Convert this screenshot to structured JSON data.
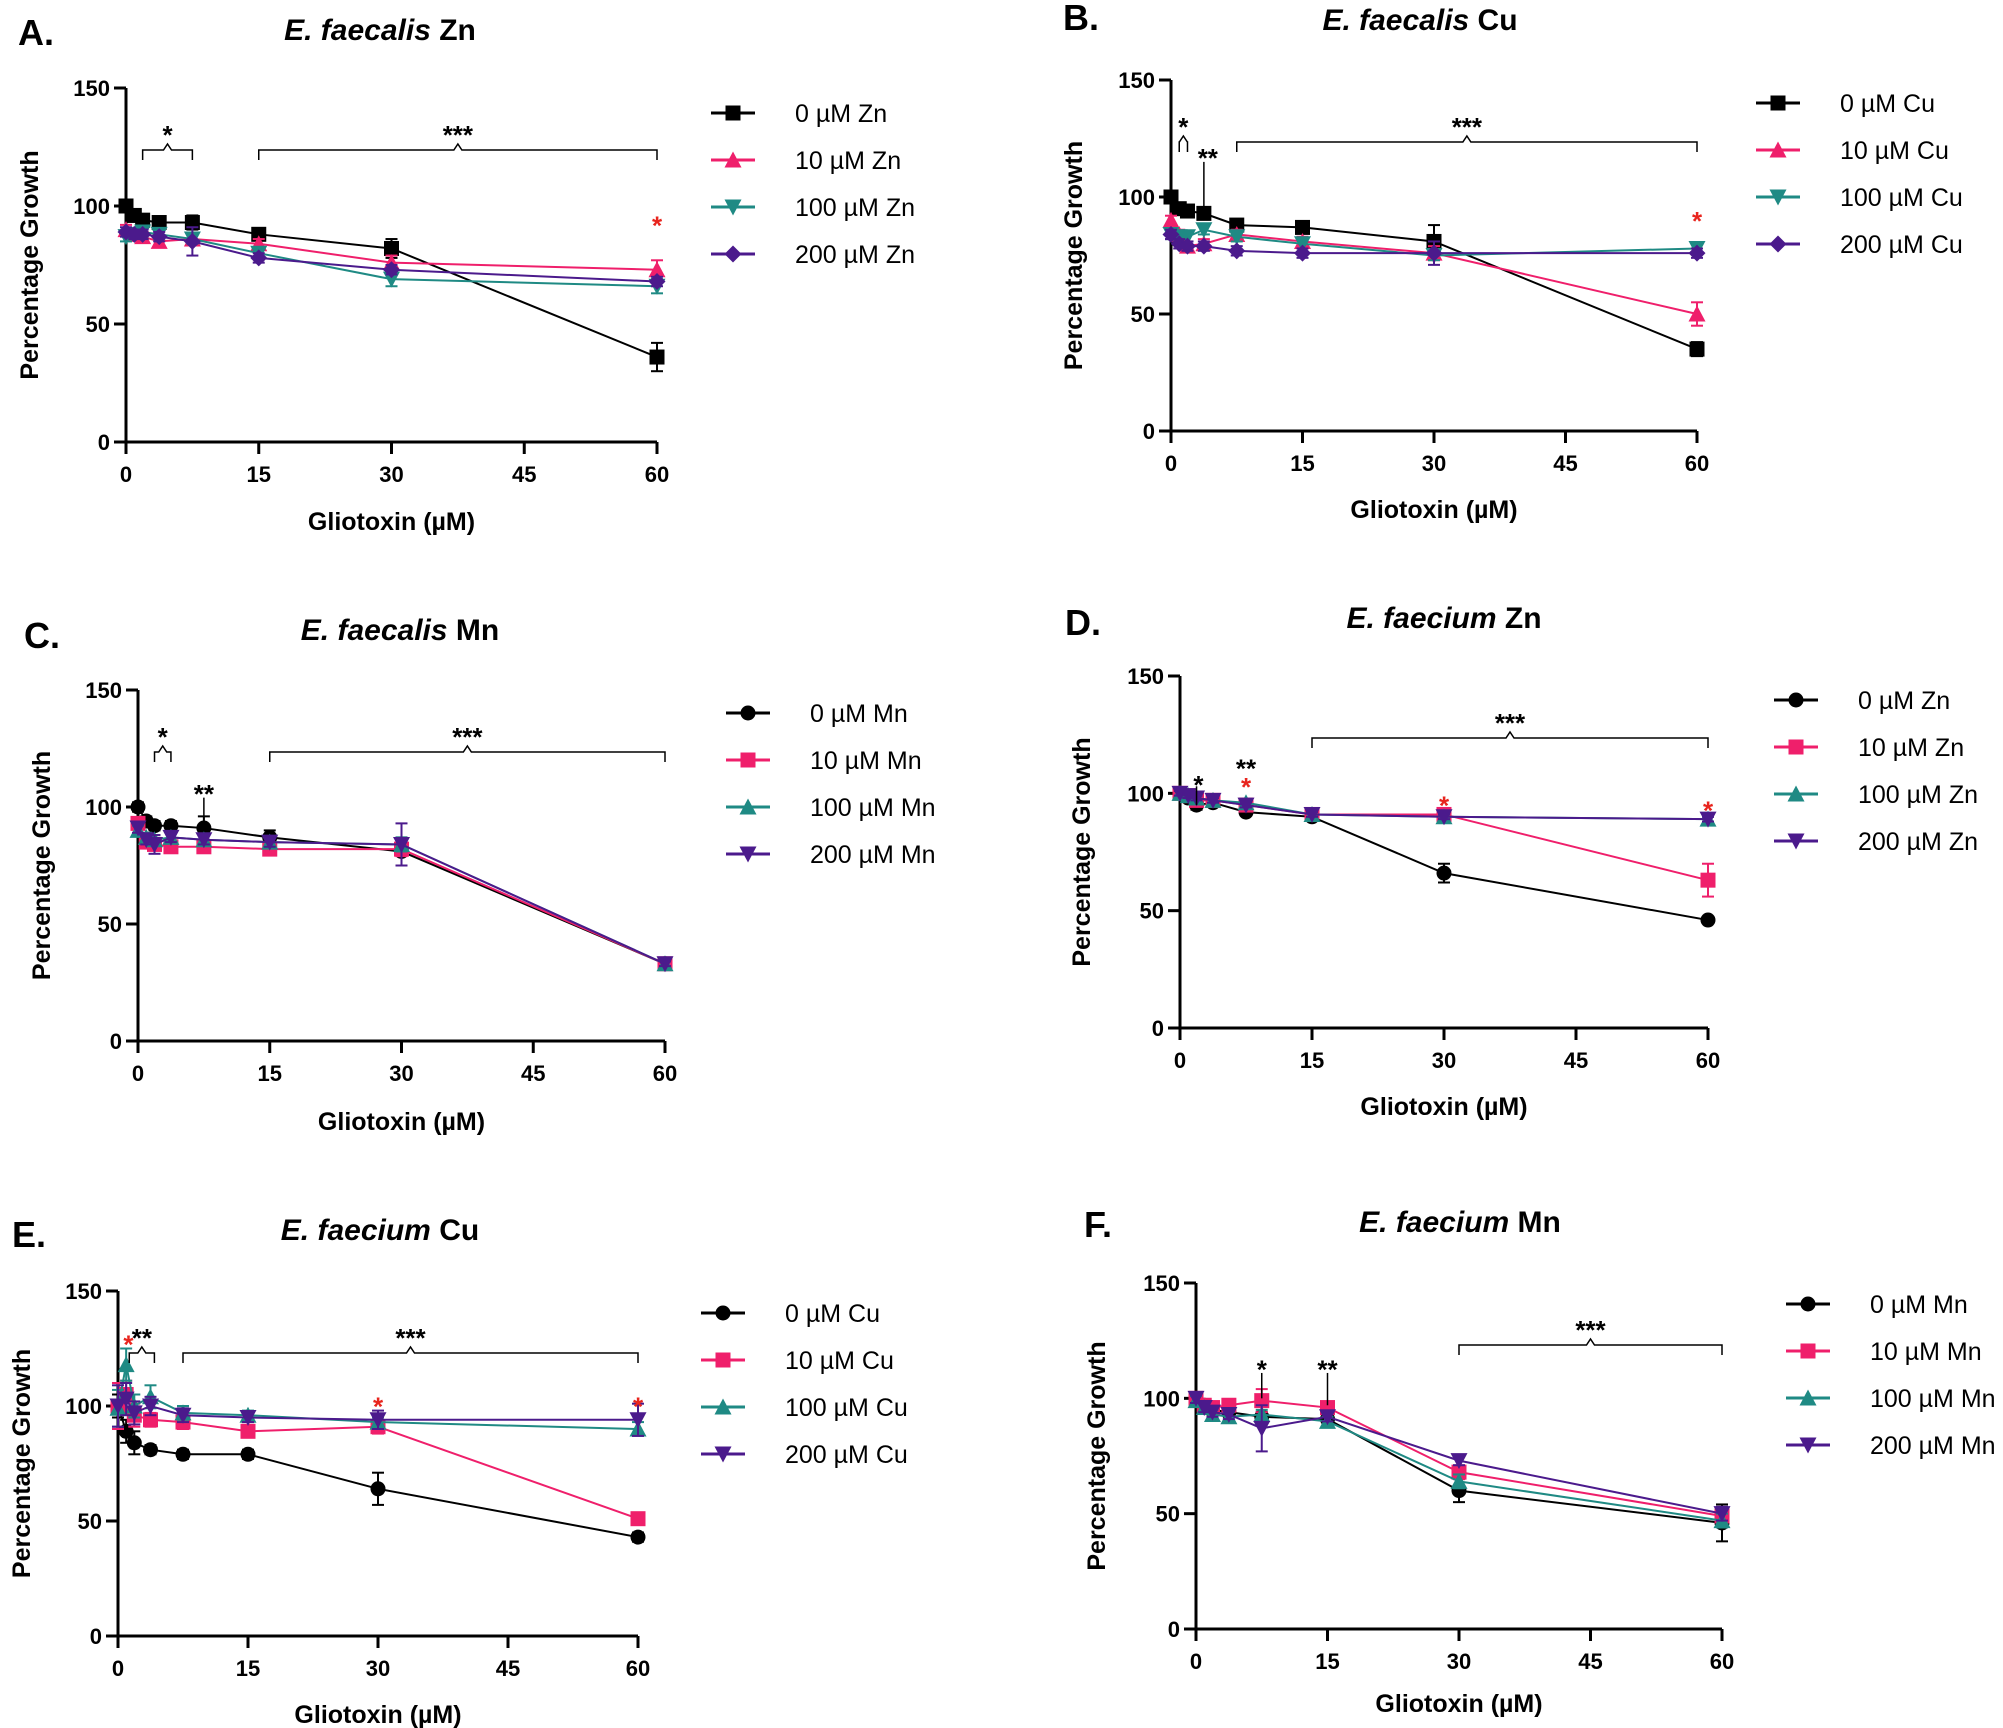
{
  "colors": {
    "black": "#000000",
    "pink": "#ef1f6b",
    "teal": "#1f8a84",
    "purple": "#4b1a8c",
    "red_star": "#e8251e"
  },
  "chart_data": [
    {
      "type": "line",
      "panel_label": "A.",
      "title_italic": "E. faecalis",
      "title_rest": " Zn",
      "xlabel": "Gliotoxin (µM)",
      "ylabel": "Percentage Growth",
      "xlim": [
        0,
        60
      ],
      "ylim": [
        0,
        150
      ],
      "xticks": [
        "0",
        "15",
        "30",
        "45",
        "60"
      ],
      "yticks": [
        "0",
        "50",
        "100",
        "150"
      ],
      "series": [
        {
          "name": "0 µM Zn",
          "color": "black",
          "marker": "square",
          "x": [
            0,
            0.94,
            1.88,
            3.75,
            7.5,
            15,
            30,
            60
          ],
          "y": [
            100,
            96,
            94,
            93,
            93,
            88,
            82,
            36
          ],
          "err": [
            2,
            2,
            2,
            2,
            3,
            2,
            4,
            6
          ]
        },
        {
          "name": "10 µM Zn",
          "color": "pink",
          "marker": "triangle-up",
          "x": [
            0,
            0.94,
            1.88,
            3.75,
            7.5,
            15,
            30,
            60
          ],
          "y": [
            90,
            88,
            87,
            85,
            86,
            84,
            76,
            73
          ],
          "err": [
            2,
            2,
            2,
            2,
            2,
            2,
            3,
            4
          ]
        },
        {
          "name": "100 µM Zn",
          "color": "teal",
          "marker": "triangle-down",
          "x": [
            0,
            0.94,
            1.88,
            3.75,
            7.5,
            15,
            30,
            60
          ],
          "y": [
            87,
            88,
            89,
            88,
            86,
            80,
            69,
            66
          ],
          "err": [
            2,
            2,
            2,
            2,
            2,
            2,
            3,
            3
          ]
        },
        {
          "name": "200 µM Zn",
          "color": "purple",
          "marker": "diamond",
          "x": [
            0,
            0.94,
            1.88,
            3.75,
            7.5,
            15,
            30,
            60
          ],
          "y": [
            89,
            88,
            88,
            87,
            85,
            78,
            73,
            68
          ],
          "err": [
            2,
            2,
            2,
            2,
            6,
            2,
            2,
            2
          ]
        }
      ],
      "brackets": [
        {
          "x1": 1.88,
          "x2": 7.5,
          "label": "*"
        },
        {
          "x1": 15,
          "x2": 60,
          "label": "***"
        }
      ],
      "red_stars": [
        {
          "x": 60,
          "y": 93
        }
      ],
      "stars": [],
      "vlines": []
    },
    {
      "type": "line",
      "panel_label": "B.",
      "title_italic": "E. faecalis",
      "title_rest": " Cu",
      "xlabel": "Gliotoxin (µM)",
      "ylabel": "Percentage Growth",
      "xlim": [
        0,
        60
      ],
      "ylim": [
        0,
        150
      ],
      "xticks": [
        "0",
        "15",
        "30",
        "45",
        "60"
      ],
      "yticks": [
        "0",
        "50",
        "100",
        "150"
      ],
      "series": [
        {
          "name": "0 µM Cu",
          "color": "black",
          "marker": "square",
          "x": [
            0,
            0.94,
            1.88,
            3.75,
            7.5,
            15,
            30,
            60
          ],
          "y": [
            100,
            95,
            94,
            93,
            88,
            87,
            81,
            35
          ],
          "err": [
            2,
            2,
            2,
            2,
            2,
            2,
            7,
            3
          ]
        },
        {
          "name": "10 µM Cu",
          "color": "pink",
          "marker": "triangle-up",
          "x": [
            0,
            0.94,
            1.88,
            3.75,
            7.5,
            15,
            30,
            60
          ],
          "y": [
            90,
            84,
            79,
            80,
            84,
            81,
            76,
            50
          ],
          "err": [
            2,
            2,
            2,
            2,
            2,
            2,
            3,
            5
          ]
        },
        {
          "name": "100 µM Cu",
          "color": "teal",
          "marker": "triangle-down",
          "x": [
            0,
            0.94,
            1.88,
            3.75,
            7.5,
            15,
            30,
            60
          ],
          "y": [
            84,
            83,
            83,
            86,
            83,
            80,
            75,
            78
          ],
          "err": [
            2,
            2,
            2,
            2,
            2,
            2,
            2,
            2
          ]
        },
        {
          "name": "200 µM Cu",
          "color": "purple",
          "marker": "diamond",
          "x": [
            0,
            0.94,
            1.88,
            3.75,
            7.5,
            15,
            30,
            60
          ],
          "y": [
            84,
            80,
            79,
            79,
            77,
            76,
            76,
            76
          ],
          "err": [
            2,
            2,
            2,
            2,
            2,
            2,
            5,
            2
          ]
        }
      ],
      "brackets": [
        {
          "x1": 0.94,
          "x2": 1.88,
          "label": "*"
        },
        {
          "x1": 7.5,
          "x2": 60,
          "label": "***"
        }
      ],
      "red_stars": [
        {
          "x": 60,
          "y": 91
        }
      ],
      "stars": [
        {
          "x": 4.2,
          "y": 117,
          "label": "**"
        }
      ],
      "vlines": [
        {
          "x": 3.75,
          "y1": 94,
          "y2": 115
        }
      ]
    },
    {
      "type": "line",
      "panel_label": "C.",
      "title_italic": "E. faecalis",
      "title_rest": " Mn",
      "xlabel": "Gliotoxin (µM)",
      "ylabel": "Percentage Growth",
      "xlim": [
        0,
        60
      ],
      "ylim": [
        0,
        150
      ],
      "xticks": [
        "0",
        "15",
        "30",
        "45",
        "60"
      ],
      "yticks": [
        "0",
        "50",
        "100",
        "150"
      ],
      "series": [
        {
          "name": "0 µM Mn",
          "color": "black",
          "marker": "circle",
          "x": [
            0,
            0.94,
            1.88,
            3.75,
            7.5,
            15,
            30,
            60
          ],
          "y": [
            100,
            94,
            92,
            92,
            91,
            87,
            81,
            33
          ],
          "err": [
            2,
            2,
            2,
            2,
            5,
            3,
            6,
            2
          ]
        },
        {
          "name": "10 µM Mn",
          "color": "pink",
          "marker": "square",
          "x": [
            0,
            0.94,
            1.88,
            3.75,
            7.5,
            15,
            30,
            60
          ],
          "y": [
            93,
            85,
            84,
            83,
            83,
            82,
            82,
            33
          ],
          "err": [
            2,
            2,
            2,
            2,
            2,
            2,
            3,
            1
          ]
        },
        {
          "name": "100 µM Mn",
          "color": "teal",
          "marker": "triangle-up",
          "x": [
            0,
            0.94,
            1.88,
            3.75,
            7.5,
            15,
            30,
            60
          ],
          "y": [
            90,
            87,
            86,
            87,
            86,
            85,
            84,
            33
          ],
          "err": [
            2,
            2,
            2,
            2,
            2,
            2,
            3,
            1
          ]
        },
        {
          "name": "200 µM Mn",
          "color": "purple",
          "marker": "triangle-down",
          "x": [
            0,
            0.94,
            1.88,
            3.75,
            7.5,
            15,
            30,
            60
          ],
          "y": [
            91,
            86,
            84,
            87,
            86,
            85,
            84,
            33
          ],
          "err": [
            2,
            2,
            4,
            2,
            2,
            2,
            9,
            1
          ]
        }
      ],
      "brackets": [
        {
          "x1": 1.88,
          "x2": 3.75,
          "label": "*"
        },
        {
          "x1": 15,
          "x2": 60,
          "label": "***"
        }
      ],
      "red_stars": [],
      "stars": [
        {
          "x": 7.5,
          "y": 106,
          "label": "**"
        }
      ],
      "vlines": [
        {
          "x": 7.5,
          "y1": 92,
          "y2": 104
        }
      ]
    },
    {
      "type": "line",
      "panel_label": "D.",
      "title_italic": "E. faecium",
      "title_rest": " Zn",
      "xlabel": "Gliotoxin (µM)",
      "ylabel": "Percentage Growth",
      "xlim": [
        0,
        60
      ],
      "ylim": [
        0,
        150
      ],
      "xticks": [
        "0",
        "15",
        "30",
        "45",
        "60"
      ],
      "yticks": [
        "0",
        "50",
        "100",
        "150"
      ],
      "series": [
        {
          "name": "0 µM Zn",
          "color": "black",
          "marker": "circle",
          "x": [
            0,
            0.94,
            1.88,
            3.75,
            7.5,
            15,
            30,
            60
          ],
          "y": [
            100,
            98,
            95,
            96,
            92,
            90,
            66,
            46
          ],
          "err": [
            1,
            1,
            2,
            1,
            1,
            1,
            4,
            1
          ]
        },
        {
          "name": "10 µM Zn",
          "color": "pink",
          "marker": "square",
          "x": [
            0,
            0.94,
            1.88,
            3.75,
            7.5,
            15,
            30,
            60
          ],
          "y": [
            100,
            99,
            97,
            97,
            95,
            91,
            91,
            63
          ],
          "err": [
            1,
            1,
            1,
            1,
            1,
            1,
            2,
            7
          ]
        },
        {
          "name": "100 µM Zn",
          "color": "teal",
          "marker": "triangle-up",
          "x": [
            0,
            0.94,
            1.88,
            3.75,
            7.5,
            15,
            30,
            60
          ],
          "y": [
            100,
            99,
            98,
            97,
            96,
            91,
            90,
            89
          ],
          "err": [
            1,
            1,
            1,
            1,
            1,
            1,
            1,
            1
          ]
        },
        {
          "name": "200 µM Zn",
          "color": "purple",
          "marker": "triangle-down",
          "x": [
            0,
            0.94,
            1.88,
            3.75,
            7.5,
            15,
            30,
            60
          ],
          "y": [
            100,
            99,
            98,
            97,
            95,
            91,
            90,
            89
          ],
          "err": [
            1,
            1,
            1,
            1,
            1,
            1,
            1,
            1
          ]
        }
      ],
      "brackets": [
        {
          "x1": 15,
          "x2": 60,
          "label": "***"
        }
      ],
      "red_stars": [
        {
          "x": 7.5,
          "y": 104
        },
        {
          "x": 30,
          "y": 96
        },
        {
          "x": 60,
          "y": 94
        }
      ],
      "stars": [
        {
          "x": 2.1,
          "y": 104,
          "label": "*"
        },
        {
          "x": 7.5,
          "y": 111,
          "label": "**"
        }
      ],
      "vlines": [
        {
          "x": 1.88,
          "y1": 95,
          "y2": 103
        }
      ]
    },
    {
      "type": "line",
      "panel_label": "E.",
      "title_italic": "E. faecium",
      "title_rest": " Cu",
      "xlabel": "Gliotoxin (µM)",
      "ylabel": "Percentage Growth",
      "xlim": [
        0,
        60
      ],
      "ylim": [
        0,
        150
      ],
      "xticks": [
        "0",
        "15",
        "30",
        "45",
        "60"
      ],
      "yticks": [
        "0",
        "50",
        "100",
        "150"
      ],
      "series": [
        {
          "name": "0 µM Cu",
          "color": "black",
          "marker": "circle",
          "x": [
            0,
            0.94,
            1.88,
            3.75,
            7.5,
            15,
            30,
            60
          ],
          "y": [
            100,
            89,
            84,
            81,
            79,
            79,
            64,
            43
          ],
          "err": [
            5,
            5,
            5,
            2,
            2,
            2,
            7,
            2
          ]
        },
        {
          "name": "10 µM Cu",
          "color": "pink",
          "marker": "square",
          "x": [
            0,
            0.94,
            1.88,
            3.75,
            7.5,
            15,
            30,
            60
          ],
          "y": [
            100,
            105,
            96,
            94,
            93,
            89,
            91,
            51
          ],
          "err": [
            10,
            6,
            5,
            3,
            3,
            2,
            3,
            2
          ]
        },
        {
          "name": "100 µM Cu",
          "color": "teal",
          "marker": "triangle-up",
          "x": [
            0,
            0.94,
            1.88,
            3.75,
            7.5,
            15,
            30,
            60
          ],
          "y": [
            99,
            118,
            100,
            104,
            97,
            96,
            93,
            90
          ],
          "err": [
            8,
            7,
            5,
            5,
            3,
            2,
            2,
            3
          ]
        },
        {
          "name": "200 µM Cu",
          "color": "purple",
          "marker": "triangle-down",
          "x": [
            0,
            0.94,
            1.88,
            3.75,
            7.5,
            15,
            30,
            60
          ],
          "y": [
            100,
            103,
            97,
            100,
            96,
            95,
            94,
            94
          ],
          "err": [
            9,
            7,
            5,
            4,
            3,
            2,
            4,
            7
          ]
        }
      ],
      "brackets": [
        {
          "x1": 1.3,
          "x2": 4.2,
          "label": "**"
        },
        {
          "x1": 7.5,
          "x2": 60,
          "label": "***"
        }
      ],
      "red_stars": [
        {
          "x": 1.2,
          "y": 128
        },
        {
          "x": 30,
          "y": 101
        },
        {
          "x": 60,
          "y": 101
        }
      ],
      "stars": [],
      "vlines": []
    },
    {
      "type": "line",
      "panel_label": "F.",
      "title_italic": "E. faecium",
      "title_rest": " Mn",
      "xlabel": "Gliotoxin (µM)",
      "ylabel": "Percentage Growth",
      "xlim": [
        0,
        60
      ],
      "ylim": [
        0,
        150
      ],
      "xticks": [
        "0",
        "15",
        "30",
        "45",
        "60"
      ],
      "yticks": [
        "0",
        "50",
        "100",
        "150"
      ],
      "series": [
        {
          "name": "0 µM Mn",
          "color": "black",
          "marker": "circle",
          "x": [
            0,
            0.94,
            1.88,
            3.75,
            7.5,
            15,
            30,
            60
          ],
          "y": [
            100,
            97,
            95,
            94,
            92,
            91,
            60,
            46
          ],
          "err": [
            2,
            2,
            2,
            2,
            2,
            2,
            5,
            8
          ]
        },
        {
          "name": "10 µM Mn",
          "color": "pink",
          "marker": "square",
          "x": [
            0,
            0.94,
            1.88,
            3.75,
            7.5,
            15,
            30,
            60
          ],
          "y": [
            100,
            97,
            96,
            97,
            99,
            96,
            68,
            49
          ],
          "err": [
            2,
            2,
            2,
            2,
            5,
            2,
            3,
            3
          ]
        },
        {
          "name": "100 µM Mn",
          "color": "teal",
          "marker": "triangle-up",
          "x": [
            0,
            0.94,
            1.88,
            3.75,
            7.5,
            15,
            30,
            60
          ],
          "y": [
            99,
            96,
            93,
            92,
            93,
            90,
            64,
            47
          ],
          "err": [
            2,
            2,
            2,
            2,
            2,
            2,
            3,
            3
          ]
        },
        {
          "name": "200 µM Mn",
          "color": "purple",
          "marker": "triangle-down",
          "x": [
            0,
            0.94,
            1.88,
            3.75,
            7.5,
            15,
            30,
            60
          ],
          "y": [
            100,
            96,
            94,
            93,
            87,
            92,
            73,
            50
          ],
          "err": [
            2,
            2,
            2,
            2,
            10,
            2,
            2,
            3
          ]
        }
      ],
      "brackets": [
        {
          "x1": 30,
          "x2": 60,
          "label": "***"
        }
      ],
      "red_stars": [],
      "stars": [
        {
          "x": 7.5,
          "y": 113,
          "label": "*"
        },
        {
          "x": 15,
          "y": 113,
          "label": "**"
        }
      ],
      "vlines": [
        {
          "x": 7.5,
          "y1": 100,
          "y2": 111
        },
        {
          "x": 15,
          "y1": 97,
          "y2": 111
        }
      ]
    }
  ]
}
